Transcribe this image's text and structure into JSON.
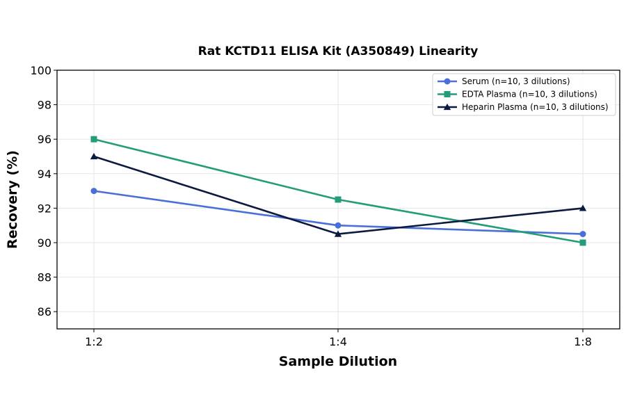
{
  "chart_data": {
    "type": "line",
    "title": "Rat KCTD11 ELISA Kit (A350849) Linearity",
    "xlabel": "Sample Dilution",
    "ylabel": "Recovery (%)",
    "categories": [
      "1:2",
      "1:4",
      "1:8"
    ],
    "ylim": [
      85,
      100
    ],
    "yticks": [
      86,
      88,
      90,
      92,
      94,
      96,
      98,
      100
    ],
    "grid": true,
    "legend_position": "top-right",
    "series": [
      {
        "name": "Serum (n=10, 3 dilutions)",
        "values": [
          93,
          91,
          90.5
        ],
        "color": "#4a6fd6",
        "marker": "circle"
      },
      {
        "name": "EDTA Plasma (n=10, 3 dilutions)",
        "values": [
          96,
          92.5,
          90
        ],
        "color": "#239c7a",
        "marker": "square"
      },
      {
        "name": "Heparin Plasma (n=10, 3 dilutions)",
        "values": [
          95,
          90.5,
          92
        ],
        "color": "#0d1a40",
        "marker": "triangle"
      }
    ]
  }
}
